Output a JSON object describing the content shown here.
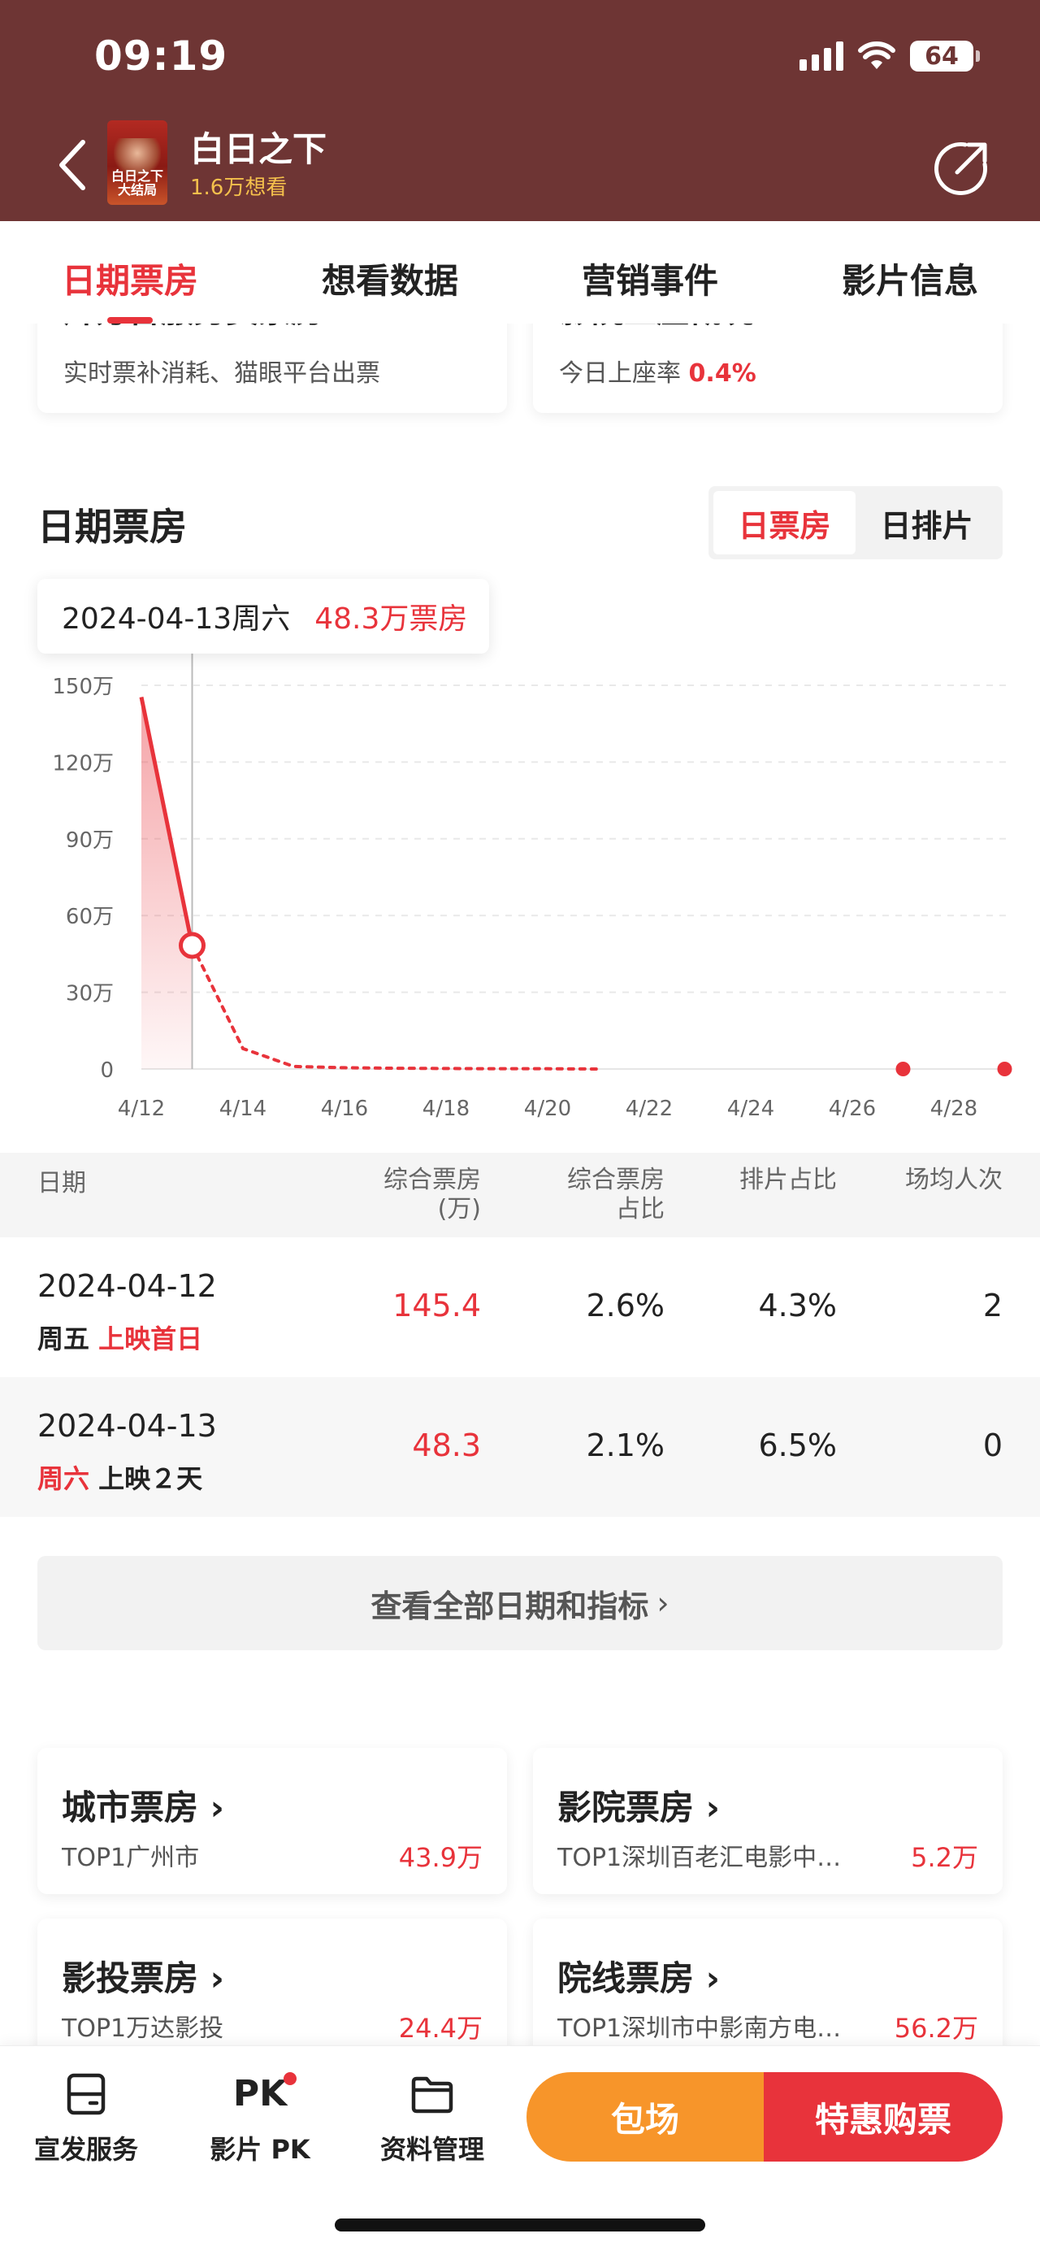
{
  "status": {
    "time": "09:19",
    "battery": "64"
  },
  "movie": {
    "title": "白日之下",
    "want_count": "1.6万想看",
    "poster_text": "白日之下 大结局"
  },
  "tabs": [
    "日期票房",
    "想看数据",
    "营销事件",
    "影片信息"
  ],
  "cut_cards": [
    {
      "title": "片方含服务费票房 ›",
      "sub": "实时票补消耗、猫眼平台出票"
    },
    {
      "title": "影院上座概况 ›",
      "sub_prefix": "今日上座率",
      "sub_value": "0.4%"
    }
  ],
  "section": {
    "title": "日期票房",
    "toggle": [
      "日票房",
      "日排片"
    ]
  },
  "tooltip": {
    "date": "2024-04-13周六",
    "value": "48.3万票房"
  },
  "chart_data": {
    "type": "line",
    "ylim": [
      0,
      150
    ],
    "y_ticks": [
      "150万",
      "120万",
      "90万",
      "60万",
      "30万",
      "0"
    ],
    "x_ticks": [
      "4/12",
      "4/14",
      "4/16",
      "4/18",
      "4/20",
      "4/22",
      "4/24",
      "4/26",
      "4/28"
    ],
    "x_range": [
      "4/12",
      "4/29"
    ],
    "unit": "万",
    "series": [
      {
        "actual": [
          {
            "x": "4/12",
            "y": 145.4
          },
          {
            "x": "4/13",
            "y": 48.3
          }
        ],
        "forecast": [
          {
            "x": "4/13",
            "y": 48.3
          },
          {
            "x": "4/14",
            "y": 8
          },
          {
            "x": "4/15",
            "y": 1
          },
          {
            "x": "4/16",
            "y": 0.5
          },
          {
            "x": "4/17",
            "y": 0.3
          },
          {
            "x": "4/18",
            "y": 0.2
          },
          {
            "x": "4/19",
            "y": 0.1
          },
          {
            "x": "4/20",
            "y": 0.1
          },
          {
            "x": "4/21",
            "y": 0
          }
        ],
        "points": [
          {
            "x": "4/27",
            "y": 0
          },
          {
            "x": "4/29",
            "y": 0
          }
        ]
      }
    ],
    "highlight": {
      "x": "4/13",
      "y": 48.3
    },
    "accent_color": "#e8333b"
  },
  "table": {
    "headers": [
      "日期",
      "综合票房\n(万)",
      "综合票房\n占比",
      "排片占比",
      "场均人次"
    ],
    "rows": [
      {
        "date": "2024-04-12",
        "weekday": "周五",
        "note": "上映首日",
        "box": "145.4",
        "box_share": "2.6%",
        "show_share": "4.3%",
        "avg_people": "2"
      },
      {
        "date": "2024-04-13",
        "weekday": "周六",
        "note": "上映２天",
        "box": "48.3",
        "box_share": "2.1%",
        "show_share": "6.5%",
        "avg_people": "0"
      }
    ]
  },
  "view_all": "查看全部日期和指标",
  "grid_cards": [
    {
      "title": "城市票房",
      "sub": "TOP1广州市",
      "value": "43.9万"
    },
    {
      "title": "影院票房",
      "sub": "TOP1深圳百老汇电影中…",
      "value": "5.2万"
    },
    {
      "title": "影投票房",
      "sub": "TOP1万达影投",
      "value": "24.4万"
    },
    {
      "title": "院线票房",
      "sub": "TOP1深圳市中影南方电…",
      "value": "56.2万"
    }
  ],
  "bottom_nav": {
    "items": [
      "宣发服务",
      "影片 PK",
      "资料管理"
    ],
    "pk_icon_text": "PK",
    "btn_book": "包场",
    "btn_buy": "特惠购票"
  }
}
